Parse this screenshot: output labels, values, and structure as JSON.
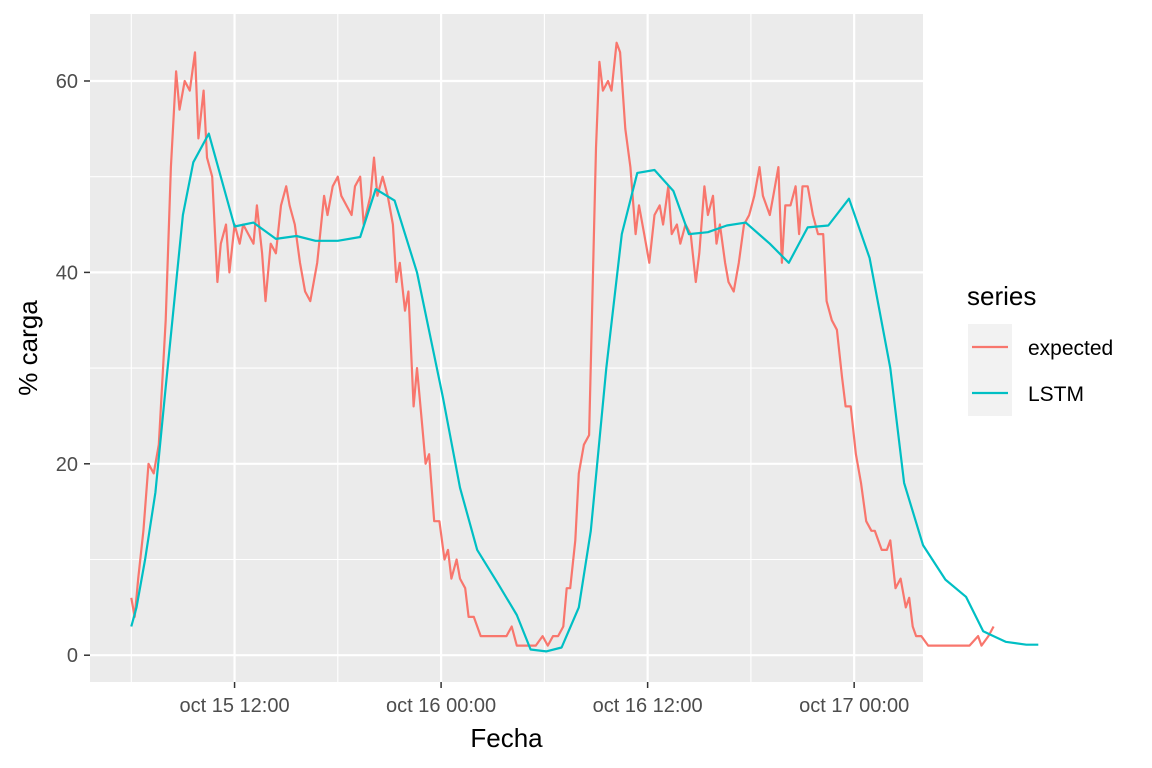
{
  "chart_data": {
    "type": "line",
    "title": "",
    "xlabel": "Fecha",
    "ylabel": "% carga",
    "x_ticks": [
      "oct 15 12:00",
      "oct 16 00:00",
      "oct 16 12:00",
      "oct 17 00:00"
    ],
    "x_tick_hours": [
      12,
      24,
      36,
      48
    ],
    "xlim_hours": [
      3.6,
      52.0
    ],
    "x_reference": "oct 15 00:00",
    "y_ticks": [
      0,
      20,
      40,
      60
    ],
    "ylim": [
      -2.8,
      67
    ],
    "grid": true,
    "legend": {
      "title": "series",
      "position": "right"
    },
    "series": [
      {
        "name": "expected",
        "color": "#F8766D",
        "points": [
          [
            6.0,
            6
          ],
          [
            6.2,
            4
          ],
          [
            6.4,
            8
          ],
          [
            6.7,
            13
          ],
          [
            7.0,
            20
          ],
          [
            7.3,
            19
          ],
          [
            7.6,
            22
          ],
          [
            8.0,
            35
          ],
          [
            8.3,
            51
          ],
          [
            8.6,
            61
          ],
          [
            8.8,
            57
          ],
          [
            9.1,
            60
          ],
          [
            9.4,
            59
          ],
          [
            9.7,
            63
          ],
          [
            9.9,
            54
          ],
          [
            10.2,
            59
          ],
          [
            10.4,
            52
          ],
          [
            10.7,
            50
          ],
          [
            11.0,
            39
          ],
          [
            11.2,
            43
          ],
          [
            11.5,
            45
          ],
          [
            11.7,
            40
          ],
          [
            12.0,
            45
          ],
          [
            12.3,
            43
          ],
          [
            12.5,
            45
          ],
          [
            12.8,
            44
          ],
          [
            13.1,
            43
          ],
          [
            13.3,
            47
          ],
          [
            13.6,
            42
          ],
          [
            13.8,
            37
          ],
          [
            14.1,
            43
          ],
          [
            14.4,
            42
          ],
          [
            14.7,
            47
          ],
          [
            15.0,
            49
          ],
          [
            15.2,
            47
          ],
          [
            15.5,
            45
          ],
          [
            15.8,
            41
          ],
          [
            16.1,
            38
          ],
          [
            16.4,
            37
          ],
          [
            16.8,
            41
          ],
          [
            17.2,
            48
          ],
          [
            17.4,
            46
          ],
          [
            17.7,
            49
          ],
          [
            18.0,
            50
          ],
          [
            18.2,
            48
          ],
          [
            18.5,
            47
          ],
          [
            18.8,
            46
          ],
          [
            19.0,
            49
          ],
          [
            19.3,
            50
          ],
          [
            19.5,
            45
          ],
          [
            19.9,
            48
          ],
          [
            20.1,
            52
          ],
          [
            20.3,
            48
          ],
          [
            20.6,
            50
          ],
          [
            20.9,
            48
          ],
          [
            21.2,
            45
          ],
          [
            21.4,
            39
          ],
          [
            21.6,
            41
          ],
          [
            21.9,
            36
          ],
          [
            22.1,
            38
          ],
          [
            22.4,
            26
          ],
          [
            22.6,
            30
          ],
          [
            22.9,
            24
          ],
          [
            23.1,
            20
          ],
          [
            23.3,
            21
          ],
          [
            23.6,
            14
          ],
          [
            23.9,
            14
          ],
          [
            24.2,
            10
          ],
          [
            24.4,
            11
          ],
          [
            24.6,
            8
          ],
          [
            24.9,
            10
          ],
          [
            25.1,
            8
          ],
          [
            25.4,
            7
          ],
          [
            25.6,
            4
          ],
          [
            25.9,
            4
          ],
          [
            26.3,
            2
          ],
          [
            27.0,
            2
          ],
          [
            27.8,
            2
          ],
          [
            28.1,
            3
          ],
          [
            28.4,
            1
          ],
          [
            29.5,
            1
          ],
          [
            29.9,
            2
          ],
          [
            30.2,
            1
          ],
          [
            30.5,
            2
          ],
          [
            30.8,
            2
          ],
          [
            31.1,
            3
          ],
          [
            31.3,
            7
          ],
          [
            31.5,
            7
          ],
          [
            31.8,
            12
          ],
          [
            32.0,
            19
          ],
          [
            32.3,
            22
          ],
          [
            32.6,
            23
          ],
          [
            33.0,
            53
          ],
          [
            33.2,
            62
          ],
          [
            33.4,
            59
          ],
          [
            33.7,
            60
          ],
          [
            33.9,
            59
          ],
          [
            34.2,
            64
          ],
          [
            34.4,
            63
          ],
          [
            34.7,
            55
          ],
          [
            35.0,
            51
          ],
          [
            35.3,
            44
          ],
          [
            35.5,
            47
          ],
          [
            35.8,
            44
          ],
          [
            36.1,
            41
          ],
          [
            36.4,
            46
          ],
          [
            36.7,
            47
          ],
          [
            36.9,
            45
          ],
          [
            37.2,
            49
          ],
          [
            37.4,
            44
          ],
          [
            37.7,
            45
          ],
          [
            37.9,
            43
          ],
          [
            38.2,
            45
          ],
          [
            38.5,
            44
          ],
          [
            38.8,
            39
          ],
          [
            39.0,
            42
          ],
          [
            39.3,
            49
          ],
          [
            39.5,
            46
          ],
          [
            39.8,
            48
          ],
          [
            40.0,
            43
          ],
          [
            40.2,
            45
          ],
          [
            40.5,
            41
          ],
          [
            40.7,
            39
          ],
          [
            41.0,
            38
          ],
          [
            41.3,
            41
          ],
          [
            41.6,
            45
          ],
          [
            41.9,
            46
          ],
          [
            42.2,
            48
          ],
          [
            42.5,
            51
          ],
          [
            42.7,
            48
          ],
          [
            43.1,
            46
          ],
          [
            43.3,
            48
          ],
          [
            43.6,
            51
          ],
          [
            43.8,
            41
          ],
          [
            44.0,
            47
          ],
          [
            44.3,
            47
          ],
          [
            44.6,
            49
          ],
          [
            44.8,
            44
          ],
          [
            45.0,
            49
          ],
          [
            45.3,
            49
          ],
          [
            45.6,
            46
          ],
          [
            45.9,
            44
          ],
          [
            46.2,
            44
          ],
          [
            46.4,
            37
          ],
          [
            46.7,
            35
          ],
          [
            47.0,
            34
          ],
          [
            47.3,
            29
          ],
          [
            47.5,
            26
          ],
          [
            47.8,
            26
          ],
          [
            48.1,
            21
          ],
          [
            48.4,
            18
          ],
          [
            48.7,
            14
          ],
          [
            49.0,
            13
          ],
          [
            49.2,
            13
          ],
          [
            49.6,
            11
          ],
          [
            49.9,
            11
          ],
          [
            50.1,
            12
          ],
          [
            50.4,
            7
          ],
          [
            50.7,
            8
          ],
          [
            51.0,
            5
          ],
          [
            51.2,
            6
          ],
          [
            51.4,
            3
          ],
          [
            51.6,
            2
          ],
          [
            51.9,
            2
          ],
          [
            52.3,
            1
          ],
          [
            52.8,
            1
          ],
          [
            53.8,
            1
          ],
          [
            54.7,
            1
          ],
          [
            55.2,
            2
          ],
          [
            55.4,
            1
          ],
          [
            55.8,
            2
          ],
          [
            56.1,
            3
          ]
        ]
      },
      {
        "name": "LSTM",
        "color": "#00BFC4",
        "points": [
          [
            6.0,
            3
          ],
          [
            6.3,
            5
          ],
          [
            6.8,
            10
          ],
          [
            7.4,
            17
          ],
          [
            8.0,
            28
          ],
          [
            9.0,
            46
          ],
          [
            9.6,
            51.5
          ],
          [
            10.5,
            54.5
          ],
          [
            12.0,
            44.8
          ],
          [
            13.1,
            45.2
          ],
          [
            14.4,
            43.5
          ],
          [
            15.6,
            43.8
          ],
          [
            16.7,
            43.3
          ],
          [
            18.0,
            43.3
          ],
          [
            19.3,
            43.7
          ],
          [
            20.2,
            48.7
          ],
          [
            21.3,
            47.5
          ],
          [
            22.6,
            40
          ],
          [
            24.1,
            27
          ],
          [
            25.1,
            17.5
          ],
          [
            26.1,
            11
          ],
          [
            27.3,
            7.5
          ],
          [
            28.4,
            4.2
          ],
          [
            29.2,
            0.6
          ],
          [
            30.1,
            0.4
          ],
          [
            31.0,
            0.8
          ],
          [
            32.0,
            5
          ],
          [
            32.7,
            13
          ],
          [
            33.6,
            30
          ],
          [
            34.5,
            44
          ],
          [
            35.4,
            50.4
          ],
          [
            36.4,
            50.7
          ],
          [
            37.5,
            48.5
          ],
          [
            38.4,
            44
          ],
          [
            39.5,
            44.2
          ],
          [
            40.6,
            44.9
          ],
          [
            41.7,
            45.2
          ],
          [
            43.1,
            43
          ],
          [
            44.2,
            41
          ],
          [
            45.3,
            44.7
          ],
          [
            46.5,
            44.9
          ],
          [
            47.7,
            47.7
          ],
          [
            48.9,
            41.5
          ],
          [
            50.1,
            30
          ],
          [
            50.9,
            18
          ],
          [
            52.0,
            11.5
          ],
          [
            53.3,
            7.9
          ],
          [
            54.5,
            6.1
          ],
          [
            55.5,
            2.5
          ],
          [
            56.8,
            1.4
          ],
          [
            58.0,
            1.1
          ],
          [
            58.7,
            1.1
          ]
        ]
      }
    ]
  }
}
